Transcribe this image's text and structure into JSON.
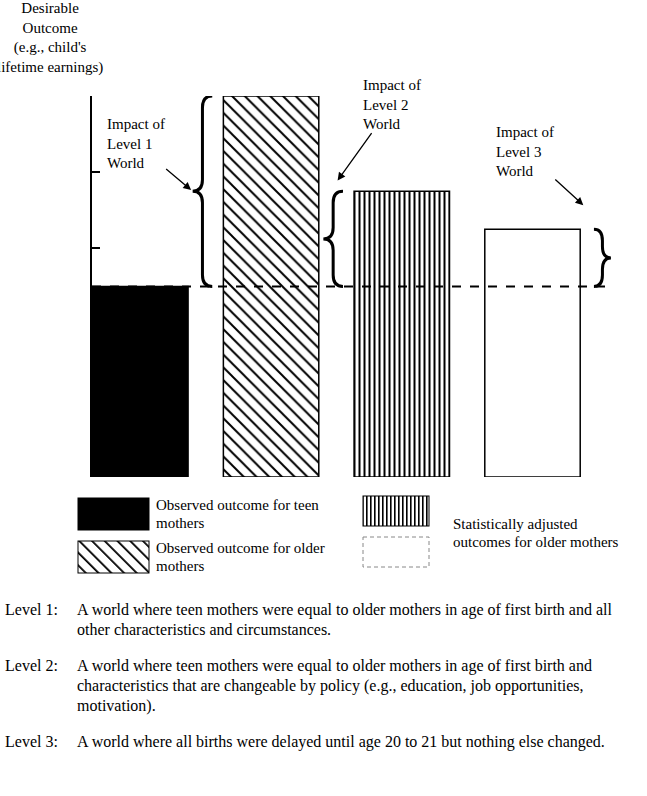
{
  "chart_data": {
    "type": "bar",
    "y_label": "Desirable\nOutcome\n(e.g., child's\nlifetime earnings)",
    "categories": [
      null,
      null,
      null,
      null
    ],
    "series": [
      {
        "name": "Observed outcome for teen mothers",
        "color": "#000000",
        "marker": "solid",
        "values": [
          2.5,
          null,
          null,
          null
        ]
      },
      {
        "name": "Observed outcome for older mothers",
        "color": "#000000",
        "marker": "diagonal",
        "values": [
          null,
          5.0,
          null,
          null
        ]
      },
      {
        "name": "Statistically adjusted outcomes for older mothers",
        "colors": [
          null,
          null,
          "#000000",
          "#ffffff"
        ],
        "marker": "vertical",
        "values": [
          null,
          null,
          3.75,
          3.25
        ]
      }
    ],
    "ylim": [
      0,
      5
    ],
    "yticks": [
      0,
      1,
      2,
      3,
      4,
      5
    ],
    "grid": false,
    "tick_labels": false,
    "legend": "bottom",
    "annotations": [
      "Impact of\nLevel 1\nWorld",
      "Impact of\nLevel 2\nWorld",
      "Impact of\nLevel 3\nWorld"
    ],
    "notes": [
      {
        "label": "Level 1:",
        "text": "A world where teen mothers were equal to older mothers in age of first birth and all other characteristics and circumstances."
      },
      {
        "label": "Level 2:",
        "text": "A world where teen mothers were equal to older mothers in age of first birth and characteristics that are changeable by policy (e.g., education, job opportunities, motivation)."
      },
      {
        "label": "Level 3:",
        "text": "A world where all births were delayed until age 20 to 21 but nothing else changed."
      }
    ]
  }
}
